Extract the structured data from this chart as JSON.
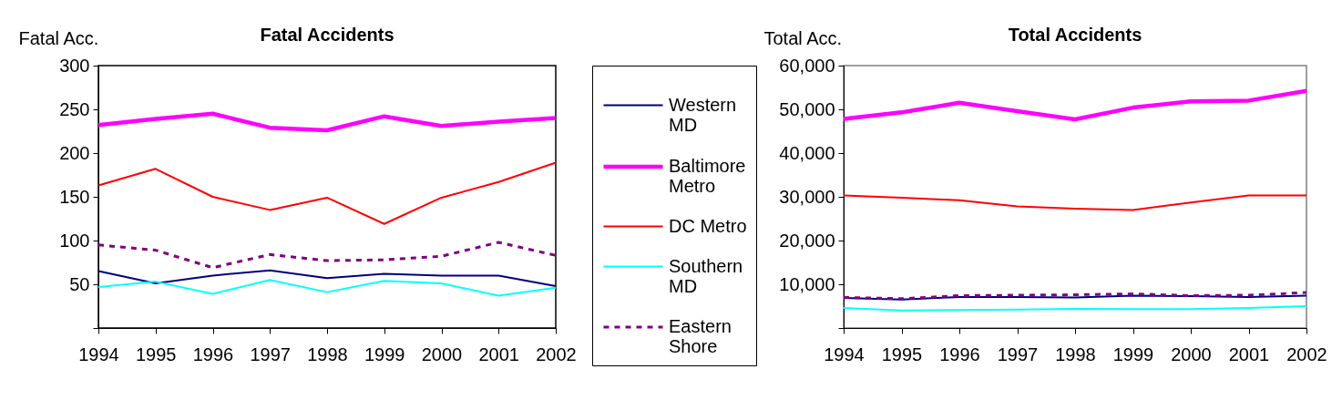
{
  "chart_data": [
    {
      "type": "line",
      "title": "Fatal Accidents",
      "ylabel": "Fatal Acc.",
      "categories": [
        "1994",
        "1995",
        "1996",
        "1997",
        "1998",
        "1999",
        "2000",
        "2001",
        "2002"
      ],
      "series": [
        {
          "name": "Western MD",
          "color": "#000080",
          "values": [
            65,
            51,
            60,
            66,
            57,
            62,
            60,
            60,
            48
          ]
        },
        {
          "name": "Baltimore Metro",
          "color": "#ff00ff",
          "values": [
            232,
            239,
            245,
            229,
            226,
            242,
            231,
            236,
            240
          ]
        },
        {
          "name": "DC Metro",
          "color": "#ff0000",
          "values": [
            163,
            182,
            150,
            135,
            149,
            119,
            149,
            167,
            189
          ]
        },
        {
          "name": "Southern MD",
          "color": "#00ffff",
          "values": [
            47,
            53,
            39,
            55,
            41,
            54,
            51,
            37,
            46
          ]
        },
        {
          "name": "Eastern Shore",
          "color": "#800080",
          "line_style": "dashed",
          "values": [
            95,
            89,
            69,
            84,
            77,
            78,
            82,
            98,
            83
          ]
        }
      ],
      "ylim": [
        0,
        300
      ],
      "yticks": [
        {
          "value": 0,
          "label": null
        },
        50,
        100,
        150,
        200,
        250,
        300
      ],
      "legend": "right",
      "grid": false
    },
    {
      "type": "line",
      "title": "Total Accidents",
      "ylabel": "Total Acc.",
      "categories": [
        "1994",
        "1995",
        "1996",
        "1997",
        "1998",
        "1999",
        "2000",
        "2001",
        "2002"
      ],
      "series": [
        {
          "name": "Western MD",
          "color": "#000080",
          "values": [
            6900,
            6500,
            7100,
            7100,
            7000,
            7400,
            7300,
            7100,
            7400
          ]
        },
        {
          "name": "Baltimore Metro",
          "color": "#ff00ff",
          "values": [
            47800,
            49300,
            51500,
            49600,
            47700,
            50400,
            51800,
            52000,
            54200
          ]
        },
        {
          "name": "DC Metro",
          "color": "#ff0000",
          "values": [
            30300,
            29800,
            29200,
            27800,
            27300,
            27000,
            28700,
            30300,
            30300
          ]
        },
        {
          "name": "Southern MD",
          "color": "#00ffff",
          "values": [
            4600,
            4000,
            4100,
            4200,
            4400,
            4300,
            4300,
            4600,
            5000
          ]
        },
        {
          "name": "Eastern Shore",
          "color": "#800080",
          "line_style": "dashed",
          "values": [
            7000,
            6700,
            7400,
            7500,
            7600,
            7800,
            7400,
            7500,
            8100
          ]
        }
      ],
      "ylim": [
        0,
        60000
      ],
      "yticks": [
        {
          "value": 0,
          "label": null
        },
        {
          "value": 10000,
          "label": "10,000"
        },
        {
          "value": 20000,
          "label": "20,000"
        },
        {
          "value": 30000,
          "label": "30,000"
        },
        {
          "value": 40000,
          "label": "40,000"
        },
        {
          "value": 50000,
          "label": "50,000"
        },
        {
          "value": 60000,
          "label": "60,000"
        }
      ],
      "legend": false,
      "grid": false
    }
  ]
}
